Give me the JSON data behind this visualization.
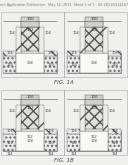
{
  "bg_color": "#f0f0ee",
  "header_text": "Patent Application Publication   May 24, 2011  Sheet 1 of 7   US 2011/0124167 A1",
  "fig1a_label": "FIG. 1A",
  "fig1b_label": "FIG. 1B",
  "line_color": "#444444",
  "hatch_ec": "#666666",
  "label_color": "#333333",
  "header_fontsize": 2.4,
  "label_fontsize": 2.8,
  "fignum_fontsize": 4.0,
  "panel_border_color": "#555555"
}
